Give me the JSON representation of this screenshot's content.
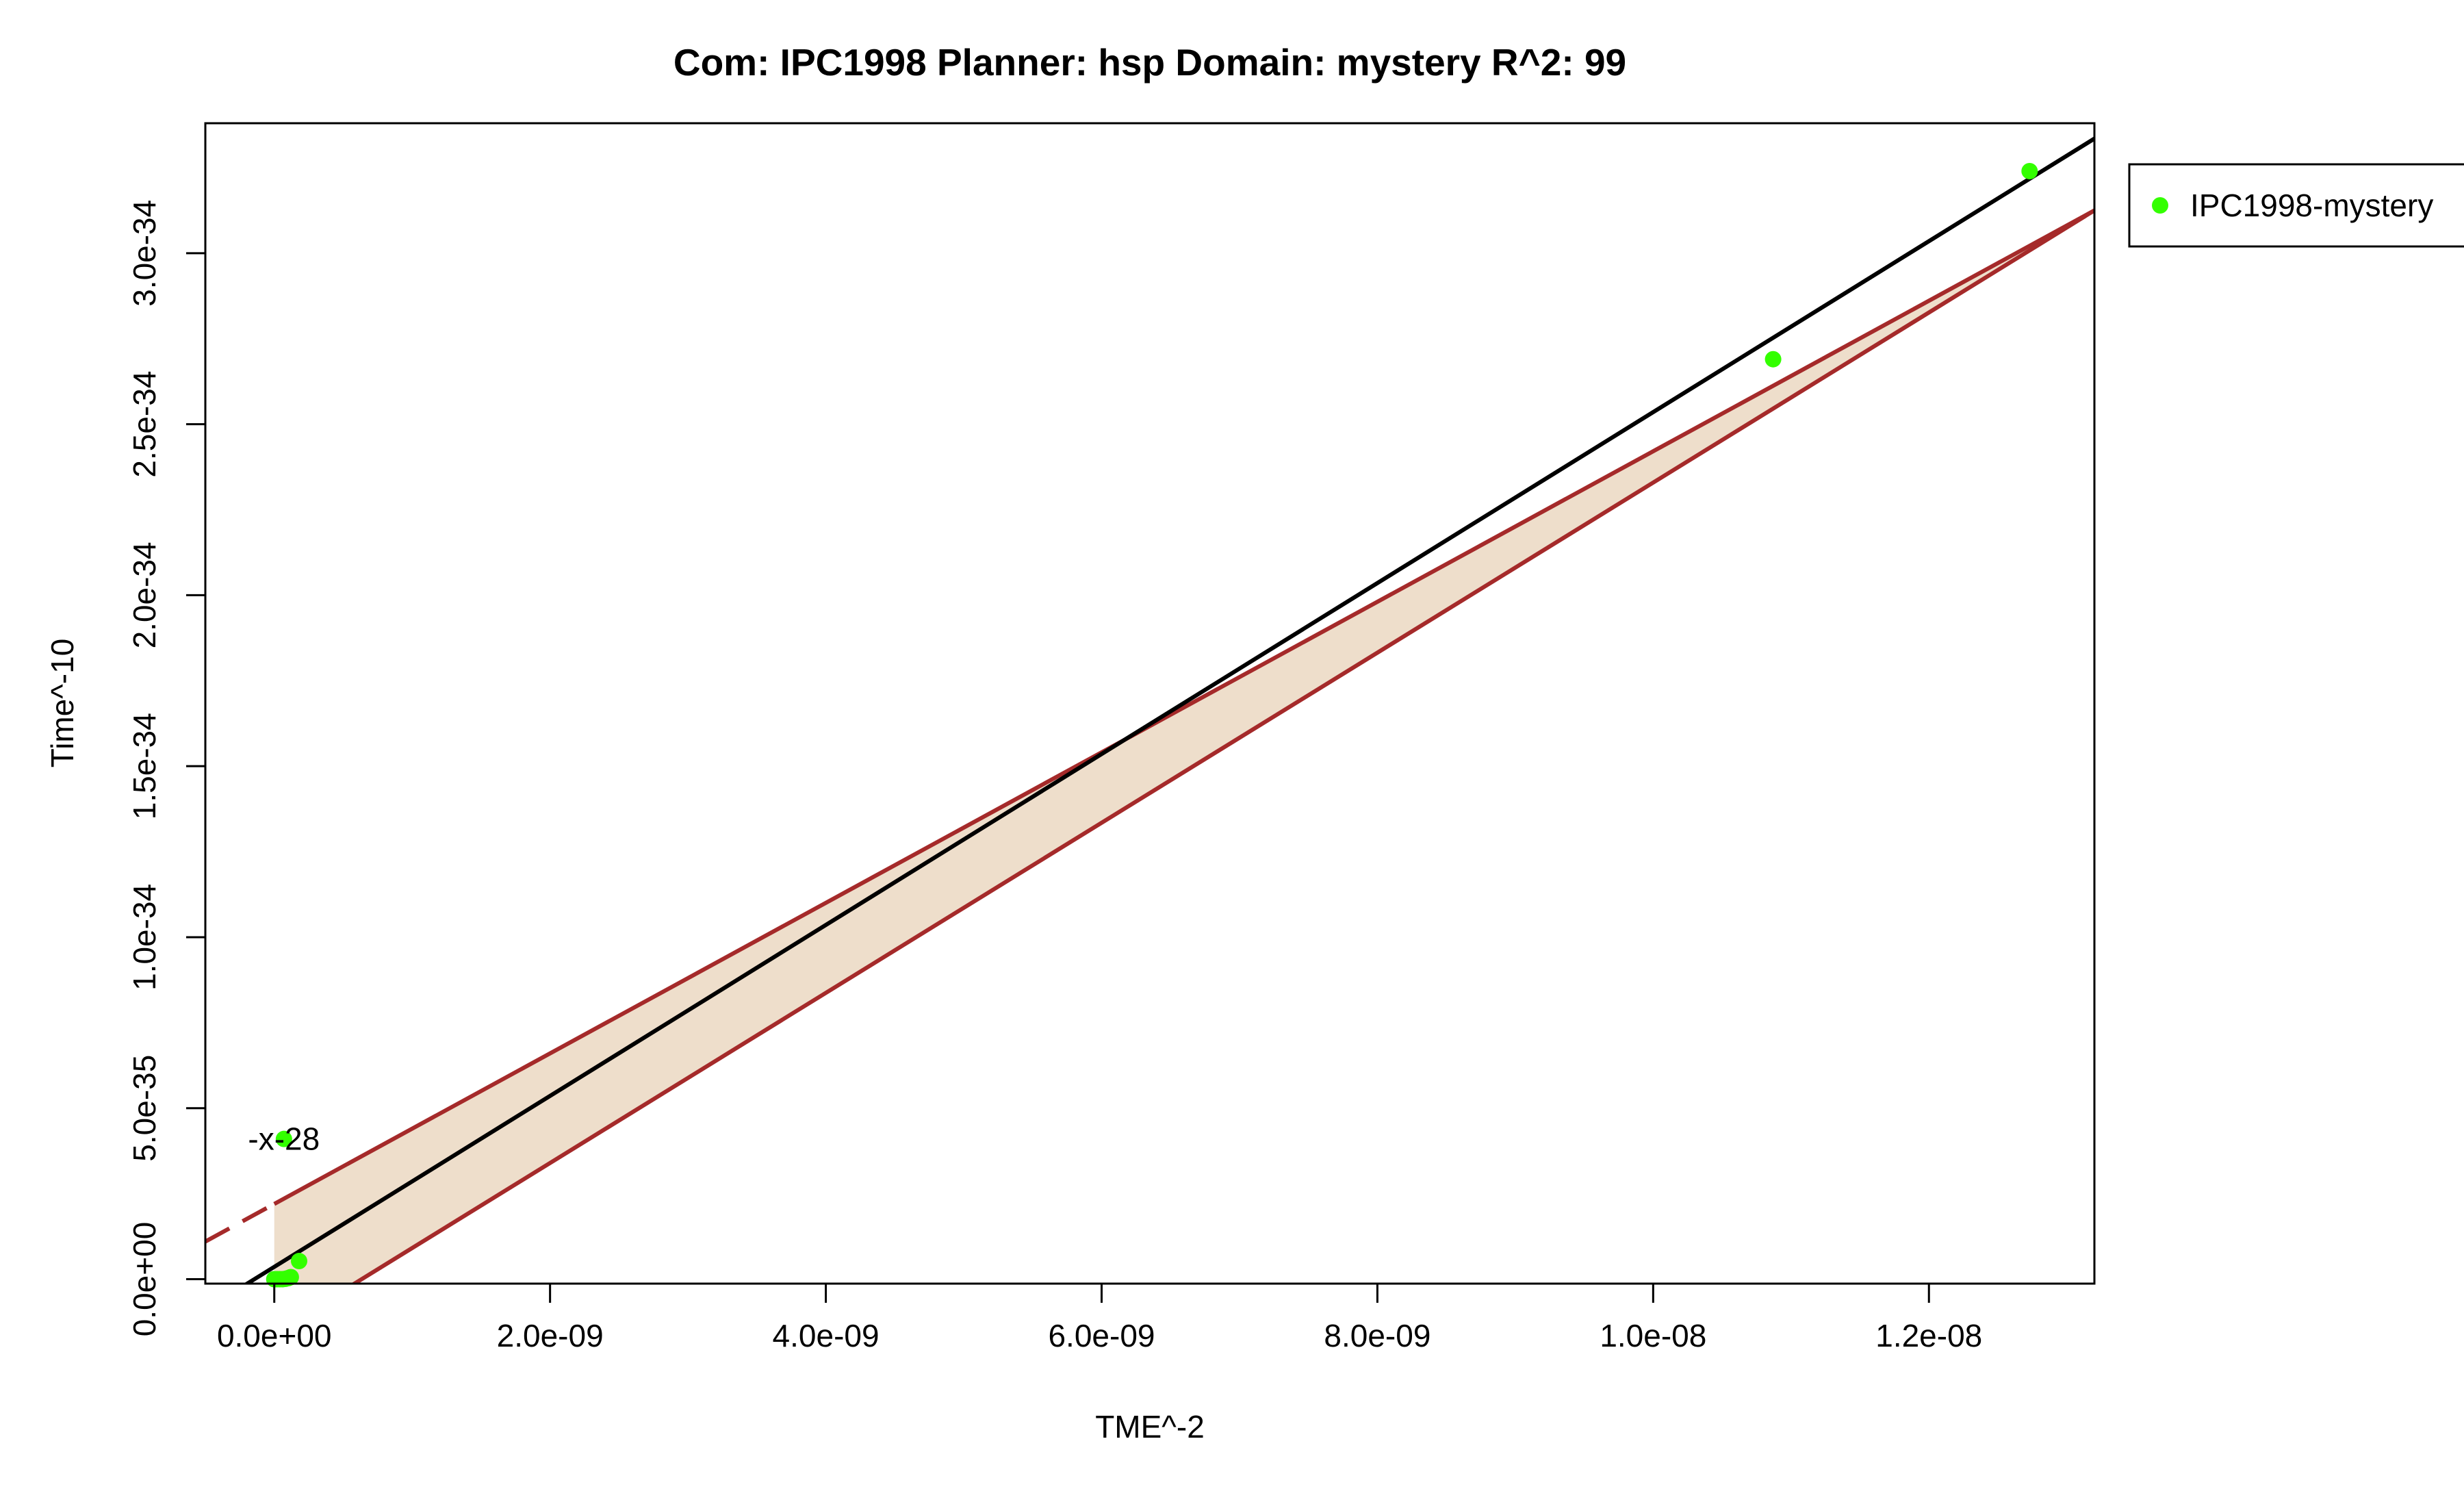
{
  "chart_data": {
    "type": "scatter",
    "title": "Com: IPC1998 Planner: hsp Domain: mystery R^2: 99",
    "xlabel": "TME^-2",
    "ylabel": "Time^-10",
    "xlim": [
      -5e-10,
      1.32e-08
    ],
    "ylim": [
      -1.3e-36,
      3.38e-34
    ],
    "x_ticks": [
      0,
      2e-09,
      4e-09,
      6e-09,
      8e-09,
      1e-08,
      1.2e-08
    ],
    "x_tick_labels": [
      "0.0e+00",
      "2.0e-09",
      "4.0e-09",
      "6.0e-09",
      "8.0e-09",
      "1.0e-08",
      "1.2e-08"
    ],
    "y_ticks": [
      0,
      5e-35,
      1e-34,
      1.5e-34,
      2e-34,
      2.5e-34,
      3e-34
    ],
    "y_tick_labels": [
      "0.0e+00",
      "5.0e-35",
      "1.0e-34",
      "1.5e-34",
      "2.0e-34",
      "2.5e-34",
      "3.0e-34"
    ],
    "series": [
      {
        "name": "IPC1998-mystery",
        "color": "#33ff00",
        "points": [
          {
            "x": 0,
            "y": 0
          },
          {
            "x": 2e-11,
            "y": 0
          },
          {
            "x": 4e-11,
            "y": 0
          },
          {
            "x": 6e-11,
            "y": 0
          },
          {
            "x": 8e-11,
            "y": 1e-37
          },
          {
            "x": 1e-10,
            "y": 3e-37
          },
          {
            "x": 1.2e-10,
            "y": 6e-37
          },
          {
            "x": 1.8e-10,
            "y": 5.3e-36
          },
          {
            "x": 7e-11,
            "y": 4.1e-35
          },
          {
            "x": 1.087e-08,
            "y": 2.69e-34
          },
          {
            "x": 1.273e-08,
            "y": 3.24e-34
          }
        ]
      }
    ],
    "regression": {
      "color": "#000000",
      "x": [
        -5e-10,
        1.32e-08
      ],
      "y": [
        -8.9e-36,
        3.335e-34
      ]
    },
    "prediction_band": {
      "fill": "#eedecb",
      "line_color": "#a52a2a",
      "x_range": [
        0,
        1.28e-08
      ],
      "upper": {
        "x": [
          -5e-10,
          1.32e-08
        ],
        "y": [
          1.1e-35,
          3.125e-34
        ]
      },
      "lower": {
        "x": [
          -5e-10,
          1.32e-08
        ],
        "y": [
          -2.82e-35,
          3.125e-34
        ]
      }
    },
    "annotations": [
      {
        "text": "-x-28",
        "x": 7e-11,
        "y": 4.1e-35
      }
    ],
    "legend": {
      "position": "top-right-outside",
      "entries": [
        "IPC1998-mystery"
      ]
    },
    "grid": false
  }
}
